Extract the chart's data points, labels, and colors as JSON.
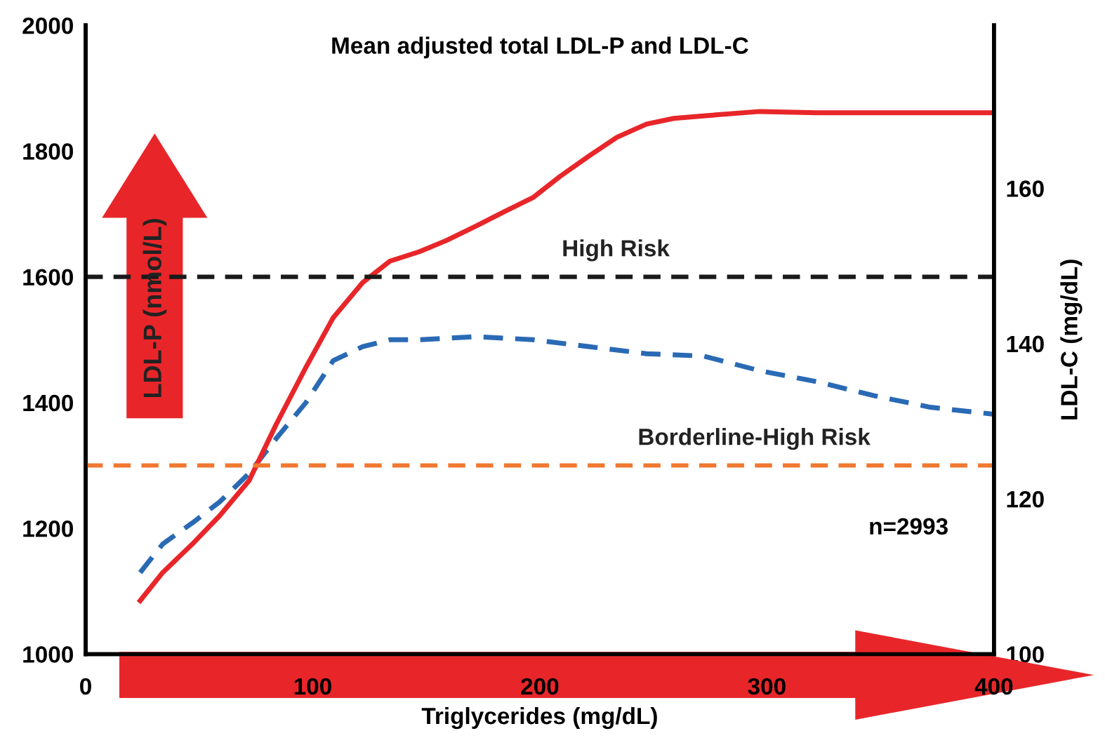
{
  "chart_data": {
    "type": "line",
    "title": "Mean adjusted total LDL-P and LDL-C",
    "xlabel": "Triglycerides (mg/dL)",
    "ylabel": "LDL-P (nmol/L)",
    "y2label": "LDL-C (mg/dL)",
    "xlim": [
      0,
      400
    ],
    "xticks": [
      0,
      100,
      200,
      300,
      400
    ],
    "ylim": [
      1000,
      2000
    ],
    "yticks": [
      1000,
      1200,
      1400,
      1600,
      1800,
      2000
    ],
    "y2lim": [
      100,
      181
    ],
    "y2ticks": [
      100,
      120,
      140,
      160
    ],
    "series": [
      {
        "color": "#e8262a",
        "line_style": "solid",
        "x": [
          24,
          34,
          47,
          59,
          72,
          84,
          97,
          109,
          122,
          134,
          147,
          159,
          172,
          184,
          197,
          209,
          222,
          234,
          247,
          259,
          272,
          297,
          322,
          347,
          372,
          400
        ],
        "values": [
          1085,
          1130,
          1175,
          1220,
          1276,
          1366,
          1456,
          1535,
          1591,
          1625,
          1640,
          1658,
          1681,
          1703,
          1726,
          1760,
          1793,
          1822,
          1843,
          1852,
          1856,
          1863,
          1861,
          1861,
          1861,
          1861
        ]
      },
      {
        "color": "#2a6ab5",
        "line_style": "dashed",
        "axis": "y2",
        "x": [
          24,
          34,
          47,
          59,
          72,
          84,
          97,
          109,
          122,
          134,
          147,
          172,
          197,
          222,
          247,
          272,
          297,
          322,
          347,
          372,
          400
        ],
        "values": [
          110.5,
          114.2,
          116.9,
          119.6,
          123.3,
          127.8,
          132.4,
          137.8,
          139.6,
          140.5,
          140.5,
          140.9,
          140.5,
          139.6,
          138.7,
          138.4,
          136.5,
          135.1,
          133.3,
          131.8,
          130.9
        ]
      }
    ],
    "ref_lines": [
      {
        "axis": "y",
        "value": 1600,
        "label": "High Risk",
        "color": "#1a1a1a",
        "line_style": "dashed"
      },
      {
        "axis": "y",
        "value": 1300,
        "label": "Borderline-High Risk",
        "color": "#f07830",
        "line_style": "dashed"
      }
    ],
    "annotations": [
      "n=2993"
    ],
    "grid": false,
    "marker": "none"
  }
}
